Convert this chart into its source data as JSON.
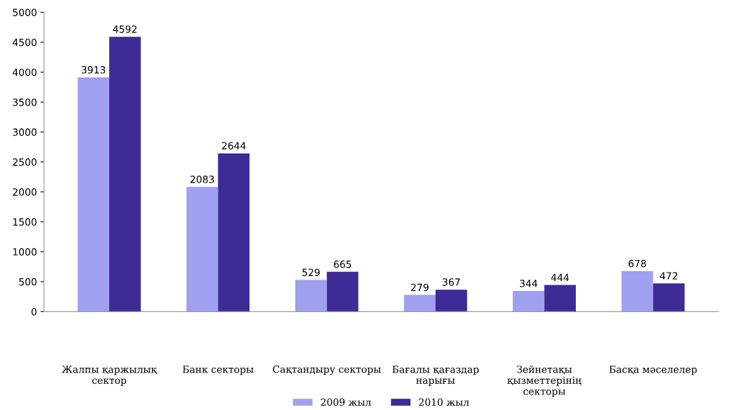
{
  "chart_data": {
    "type": "bar",
    "categories": [
      "Жалпы қаржылық сектор",
      "Банк секторы",
      "Сақтандыру секторы",
      "Бағалы қағаздар нарығы",
      "Зейнетақы қызметтерінің секторы",
      "Басқа мәселелер"
    ],
    "series": [
      {
        "name": "2009 жыл",
        "color": "#a0a0f0",
        "values": [
          3913,
          2083,
          529,
          279,
          344,
          678
        ]
      },
      {
        "name": "2010 жыл",
        "color": "#3f2b96",
        "values": [
          4592,
          2644,
          665,
          367,
          444,
          472
        ]
      }
    ],
    "ylim": [
      0,
      5000
    ],
    "yticks": [
      0,
      500,
      1000,
      1500,
      2000,
      2500,
      3000,
      3500,
      4000,
      4500,
      5000
    ],
    "grid": false,
    "legend": "bottom",
    "data_labels": true
  }
}
